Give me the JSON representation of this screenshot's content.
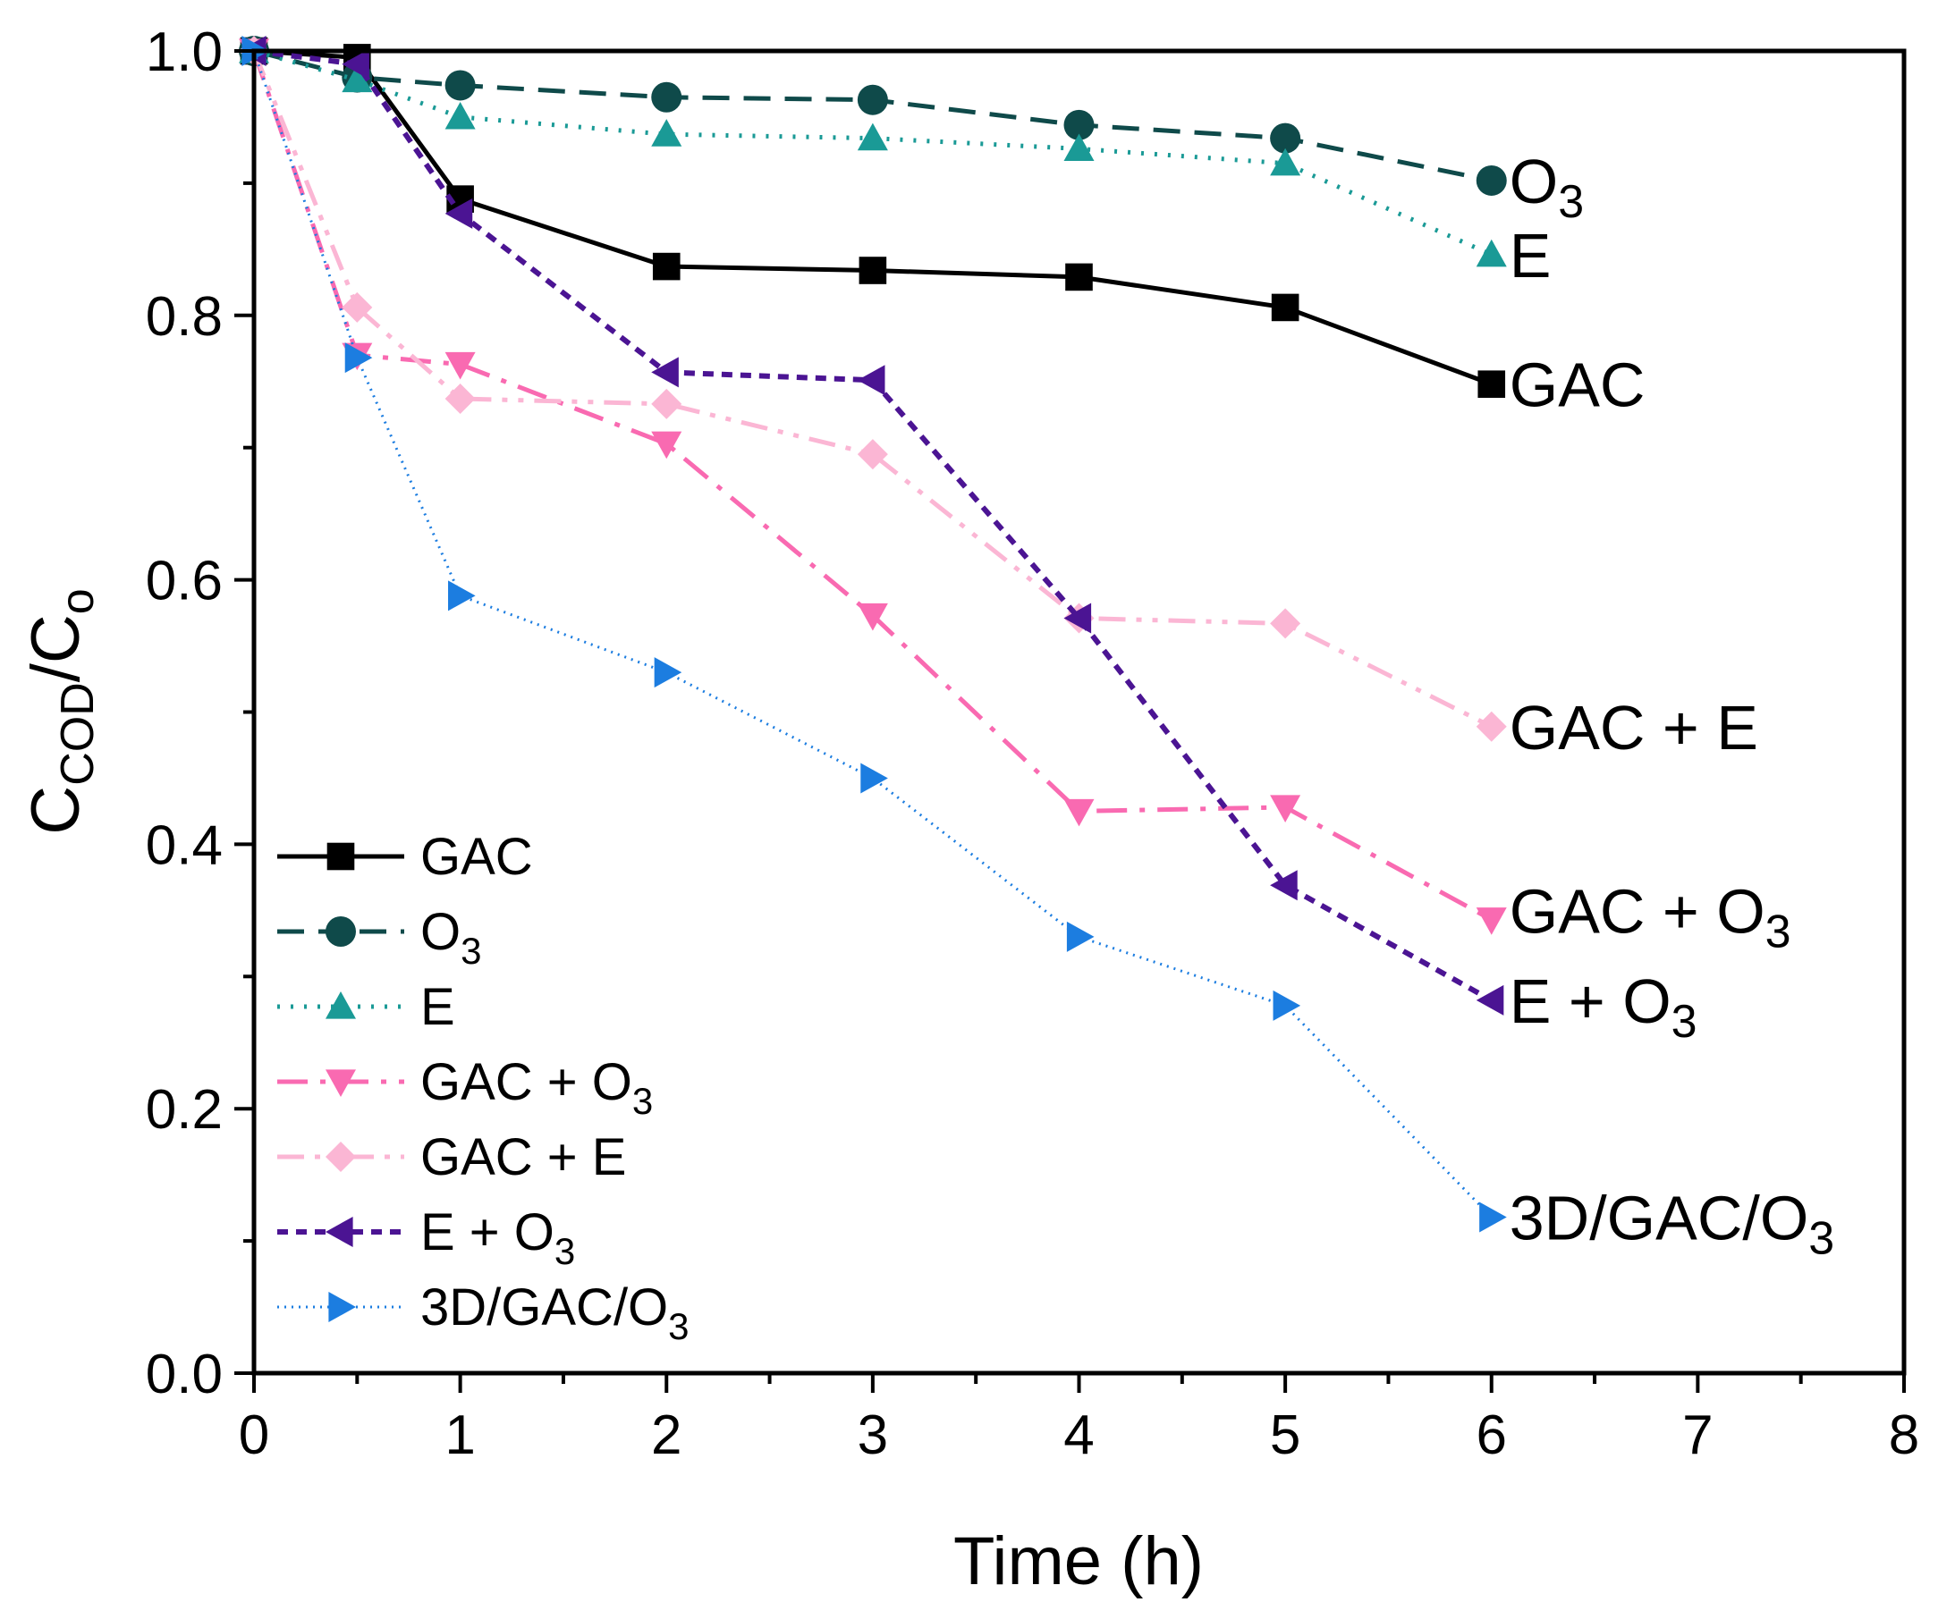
{
  "chart_data": {
    "type": "line",
    "title": "",
    "xlabel": "Time (h)",
    "ylabel": {
      "main": "C",
      "sub1": "COD",
      "sep": "/C",
      "sub2": "o"
    },
    "xlim": [
      0,
      8
    ],
    "ylim": [
      0,
      1.0
    ],
    "xticks": [
      "0",
      "1",
      "2",
      "3",
      "4",
      "5",
      "6",
      "7",
      "8"
    ],
    "yticks": [
      "0.0",
      "0.2",
      "0.4",
      "0.6",
      "0.8",
      "1.0"
    ],
    "grid": false,
    "legend_position": "bottom-left",
    "series": [
      {
        "key": "gac",
        "name": "GAC",
        "sub": "",
        "end_label": "GAC",
        "end_sub": "",
        "end_suffix": "",
        "color": "#000000",
        "marker": "square",
        "dash": "none",
        "x": [
          0,
          0.5,
          1,
          2,
          3,
          4,
          5,
          6
        ],
        "y": [
          1.0,
          0.995,
          0.888,
          0.837,
          0.834,
          0.829,
          0.806,
          0.748
        ]
      },
      {
        "key": "o3",
        "name": "O",
        "sub": "3",
        "end_label": "O",
        "end_sub": "3",
        "end_suffix": "",
        "color": "#0f4a4a",
        "marker": "circle",
        "dash": "dashed",
        "x": [
          0,
          0.5,
          1,
          2,
          3,
          4,
          5,
          6
        ],
        "y": [
          1.0,
          0.98,
          0.974,
          0.965,
          0.963,
          0.944,
          0.934,
          0.902
        ]
      },
      {
        "key": "e",
        "name": "E",
        "sub": "",
        "end_label": "E",
        "end_sub": "",
        "end_suffix": "",
        "color": "#1a9a96",
        "marker": "triangle-up",
        "dash": "dotted",
        "x": [
          0,
          0.5,
          1,
          2,
          3,
          4,
          5,
          6
        ],
        "y": [
          1.0,
          0.978,
          0.95,
          0.937,
          0.934,
          0.926,
          0.915,
          0.846
        ]
      },
      {
        "key": "gac_o3",
        "name": "GAC + O",
        "sub": "3",
        "end_label": "GAC + O",
        "end_sub": "3",
        "end_suffix": "",
        "color": "#f96ab1",
        "marker": "triangle-down",
        "dash": "dashdot",
        "x": [
          0,
          0.5,
          1,
          2,
          3,
          4,
          5,
          6
        ],
        "y": [
          1.0,
          0.77,
          0.763,
          0.703,
          0.573,
          0.425,
          0.428,
          0.343
        ]
      },
      {
        "key": "gac_e",
        "name": "GAC + E",
        "sub": "",
        "end_label": "GAC + E",
        "end_sub": "",
        "end_suffix": "",
        "color": "#fbb6d4",
        "marker": "diamond",
        "dash": "dashdotdot",
        "x": [
          0,
          0.5,
          1,
          2,
          3,
          4,
          5,
          6
        ],
        "y": [
          1.0,
          0.806,
          0.737,
          0.733,
          0.695,
          0.571,
          0.567,
          0.489
        ]
      },
      {
        "key": "e_o3",
        "name": "E + O",
        "sub": "3",
        "end_label": "E + O",
        "end_sub": "3",
        "end_suffix": "",
        "color": "#4b1493",
        "marker": "triangle-left",
        "dash": "shortdash",
        "x": [
          0,
          0.5,
          1,
          2,
          3,
          4,
          5,
          6
        ],
        "y": [
          1.0,
          0.99,
          0.877,
          0.757,
          0.751,
          0.571,
          0.369,
          0.282
        ]
      },
      {
        "key": "d3",
        "name": "3D/GAC/O",
        "sub": "3",
        "end_label": "3D/GAC/O",
        "end_sub": "3",
        "end_suffix": "",
        "color": "#1c7de0",
        "marker": "triangle-right",
        "dash": "finedot",
        "x": [
          0,
          0.5,
          1,
          2,
          3,
          4,
          5,
          6
        ],
        "y": [
          1.0,
          0.768,
          0.588,
          0.53,
          0.45,
          0.33,
          0.278,
          0.118
        ]
      }
    ]
  }
}
